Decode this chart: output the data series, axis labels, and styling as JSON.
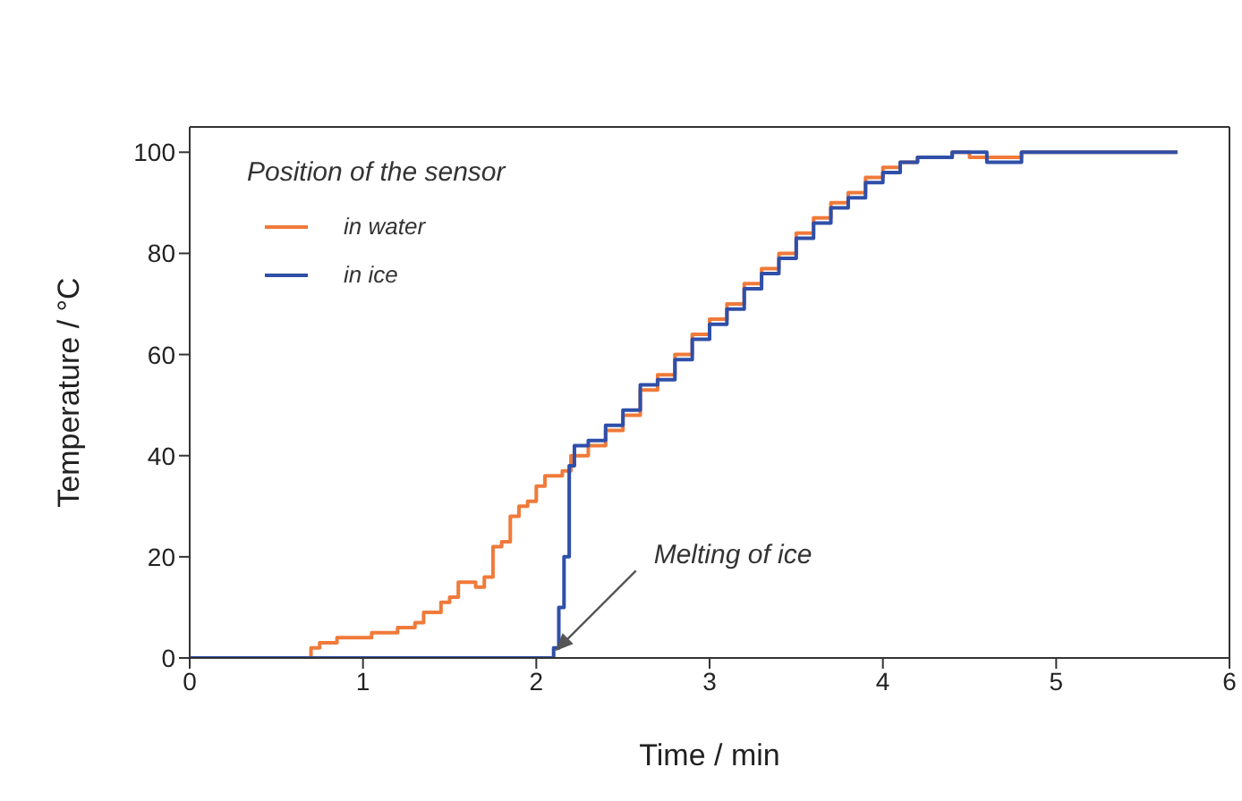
{
  "chart_data": {
    "type": "step",
    "xlabel": "Time / min",
    "ylabel": "Temperature / °C",
    "legend_title": "Position of the sensor",
    "legend": "top left",
    "xlim": [
      0,
      6
    ],
    "xticks": [
      0,
      1,
      2,
      3,
      4,
      5,
      6
    ],
    "ylim": [
      0,
      105
    ],
    "yticks": [
      0,
      20,
      40,
      60,
      80,
      100
    ],
    "marker": "none",
    "line_style": "solid",
    "annotations": [
      {
        "text": "Melting of ice",
        "x": 2.1,
        "y": 1
      }
    ],
    "series": [
      {
        "name": "in water",
        "color": "#f07a3a",
        "x": [
          0,
          0.68,
          0.7,
          0.75,
          0.85,
          0.95,
          1.05,
          1.2,
          1.3,
          1.35,
          1.45,
          1.5,
          1.55,
          1.65,
          1.7,
          1.75,
          1.8,
          1.85,
          1.9,
          1.95,
          2.0,
          2.05,
          2.15,
          2.2,
          2.3,
          2.4,
          2.5,
          2.6,
          2.7,
          2.8,
          2.9,
          3.0,
          3.1,
          3.2,
          3.3,
          3.4,
          3.5,
          3.6,
          3.7,
          3.8,
          3.9,
          4.0,
          4.1,
          4.2,
          4.4,
          4.5,
          4.7,
          4.8,
          5.7
        ],
        "values": [
          0,
          0,
          2,
          3,
          4,
          4,
          5,
          6,
          7,
          9,
          11,
          12,
          15,
          14,
          16,
          22,
          23,
          28,
          30,
          31,
          34,
          36,
          37,
          40,
          42,
          45,
          48,
          53,
          56,
          60,
          64,
          67,
          70,
          74,
          77,
          80,
          84,
          87,
          90,
          92,
          95,
          97,
          98,
          99,
          100,
          99,
          99,
          100,
          100
        ]
      },
      {
        "name": "in ice",
        "color": "#2f4fa8",
        "x": [
          0,
          2.05,
          2.1,
          2.13,
          2.16,
          2.19,
          2.22,
          2.3,
          2.4,
          2.5,
          2.6,
          2.7,
          2.8,
          2.9,
          3.0,
          3.1,
          3.2,
          3.3,
          3.4,
          3.5,
          3.6,
          3.7,
          3.8,
          3.9,
          4.0,
          4.1,
          4.2,
          4.4,
          4.6,
          4.75,
          4.8,
          5.7
        ],
        "values": [
          0,
          0,
          2,
          10,
          20,
          38,
          42,
          43,
          46,
          49,
          54,
          55,
          59,
          63,
          66,
          69,
          73,
          76,
          79,
          83,
          86,
          89,
          91,
          94,
          96,
          98,
          99,
          100,
          98,
          98,
          100,
          100
        ]
      }
    ]
  }
}
